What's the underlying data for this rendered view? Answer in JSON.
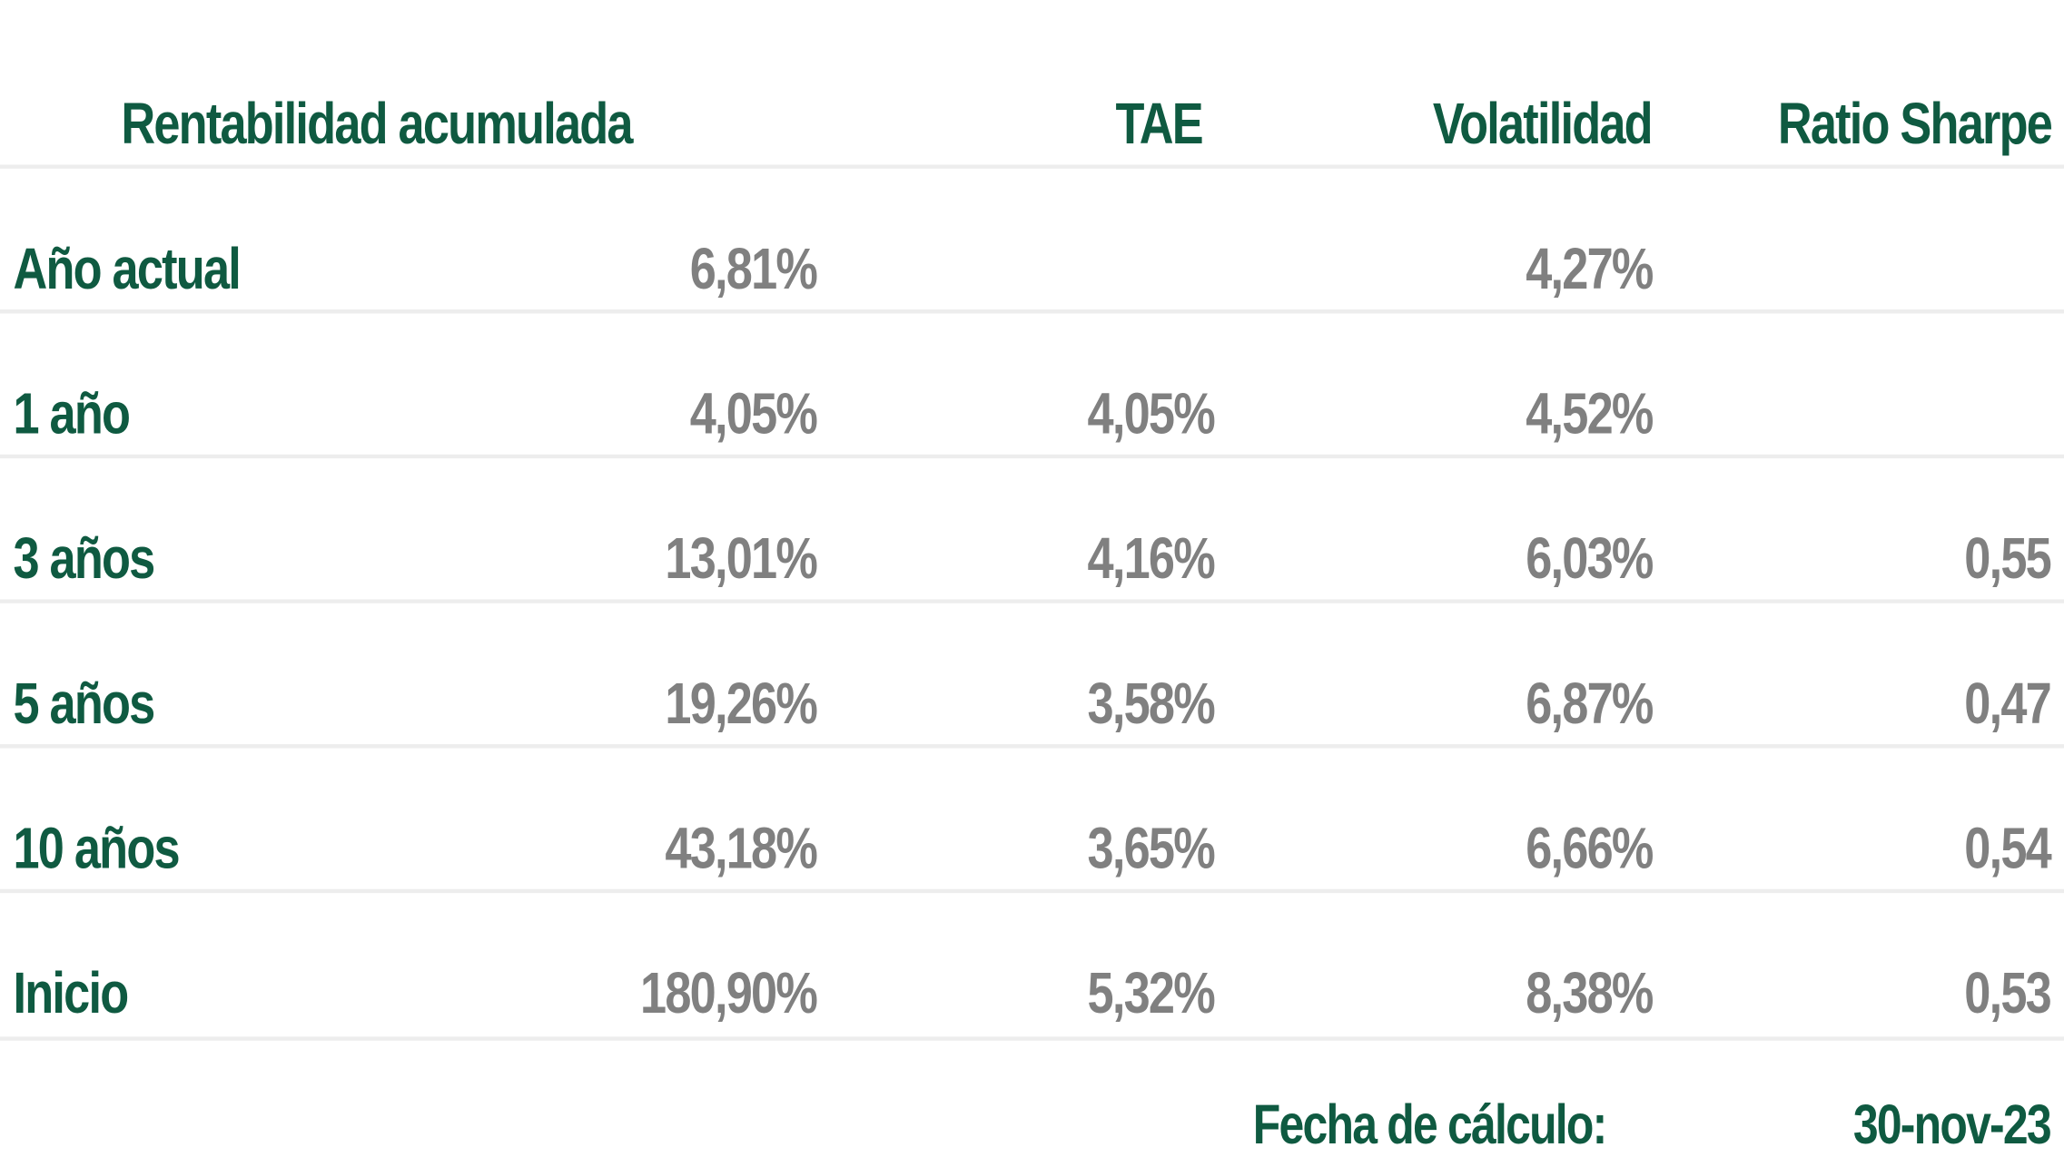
{
  "chart_data": {
    "type": "table",
    "columns": [
      "Rentabilidad acumulada",
      "TAE",
      "Volatilidad",
      "Ratio Sharpe"
    ],
    "rows": [
      {
        "label": "Año actual",
        "rentabilidad": "6,81%",
        "tae": "",
        "volatilidad": "4,27%",
        "sharpe": ""
      },
      {
        "label": "1 año",
        "rentabilidad": "4,05%",
        "tae": "4,05%",
        "volatilidad": "4,52%",
        "sharpe": ""
      },
      {
        "label": "3 años",
        "rentabilidad": "13,01%",
        "tae": "4,16%",
        "volatilidad": "6,03%",
        "sharpe": "0,55"
      },
      {
        "label": "5 años",
        "rentabilidad": "19,26%",
        "tae": "3,58%",
        "volatilidad": "6,87%",
        "sharpe": "0,47"
      },
      {
        "label": "10 años",
        "rentabilidad": "43,18%",
        "tae": "3,65%",
        "volatilidad": "6,66%",
        "sharpe": "0,54"
      },
      {
        "label": "Inicio",
        "rentabilidad": "180,90%",
        "tae": "5,32%",
        "volatilidad": "8,38%",
        "sharpe": "0,53"
      }
    ],
    "footer": {
      "label": "Fecha de cálculo:",
      "date": "30-nov-23"
    }
  },
  "colors": {
    "label_green": "#0f5a41",
    "value_gray": "#808080",
    "rule_gray": "#ededed"
  }
}
